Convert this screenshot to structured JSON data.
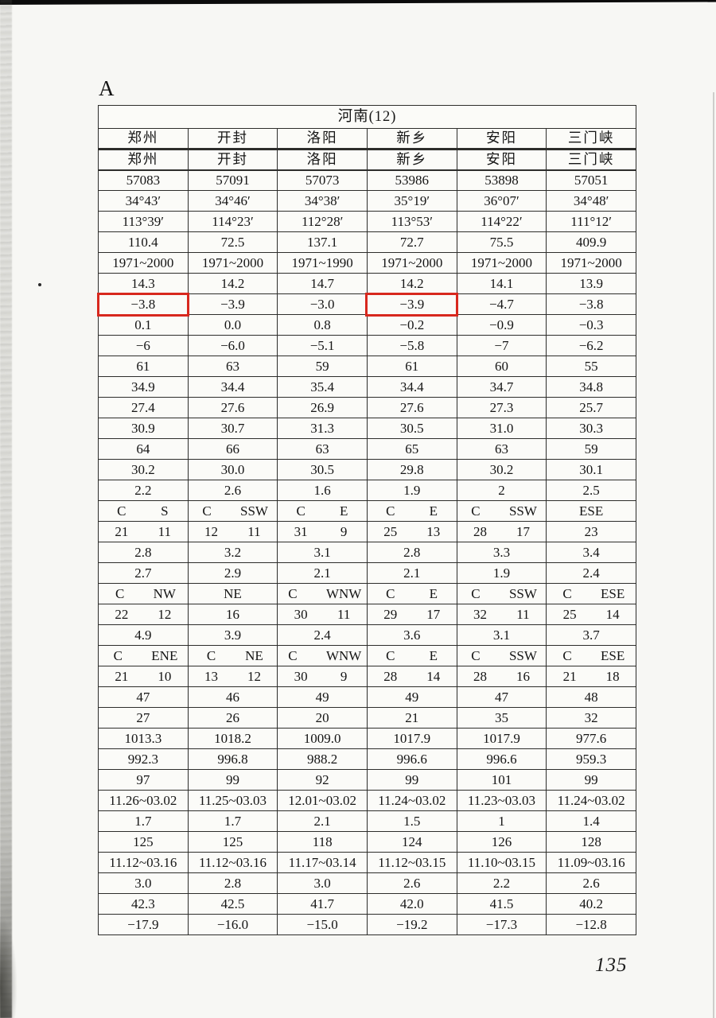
{
  "page": {
    "section_label": "A",
    "page_number": "135"
  },
  "table": {
    "title": "河南(12)",
    "header_rows": [
      [
        "郑州",
        "开封",
        "洛阳",
        "新乡",
        "安阳",
        "三门峡"
      ],
      [
        "郑州",
        "开封",
        "洛阳",
        "新乡",
        "安阳",
        "三门峡"
      ]
    ],
    "data_rows": [
      [
        "57083",
        "57091",
        "57073",
        "53986",
        "53898",
        "57051"
      ],
      [
        "34°43′",
        "34°46′",
        "34°38′",
        "35°19′",
        "36°07′",
        "34°48′"
      ],
      [
        "113°39′",
        "114°23′",
        "112°28′",
        "113°53′",
        "114°22′",
        "111°12′"
      ],
      [
        "110.4",
        "72.5",
        "137.1",
        "72.7",
        "75.5",
        "409.9"
      ],
      [
        "1971~2000",
        "1971~2000",
        "1971~1990",
        "1971~2000",
        "1971~2000",
        "1971~2000"
      ],
      [
        "14.3",
        "14.2",
        "14.7",
        "14.2",
        "14.1",
        "13.9"
      ],
      [
        "−3.8",
        "−3.9",
        "−3.0",
        "−3.9",
        "−4.7",
        "−3.8"
      ],
      [
        "0.1",
        "0.0",
        "0.8",
        "−0.2",
        "−0.9",
        "−0.3"
      ],
      [
        "−6",
        "−6.0",
        "−5.1",
        "−5.8",
        "−7",
        "−6.2"
      ],
      [
        "61",
        "63",
        "59",
        "61",
        "60",
        "55"
      ],
      [
        "34.9",
        "34.4",
        "35.4",
        "34.4",
        "34.7",
        "34.8"
      ],
      [
        "27.4",
        "27.6",
        "26.9",
        "27.6",
        "27.3",
        "25.7"
      ],
      [
        "30.9",
        "30.7",
        "31.3",
        "30.5",
        "31.0",
        "30.3"
      ],
      [
        "64",
        "66",
        "63",
        "65",
        "63",
        "59"
      ],
      [
        "30.2",
        "30.0",
        "30.5",
        "29.8",
        "30.2",
        "30.1"
      ],
      [
        "2.2",
        "2.6",
        "1.6",
        "1.9",
        "2",
        "2.5"
      ],
      [
        [
          "C",
          "S"
        ],
        [
          "C",
          "SSW"
        ],
        [
          "C",
          "E"
        ],
        [
          "C",
          "E"
        ],
        [
          "C",
          "SSW"
        ],
        "ESE"
      ],
      [
        [
          "21",
          "11"
        ],
        [
          "12",
          "11"
        ],
        [
          "31",
          "9"
        ],
        [
          "25",
          "13"
        ],
        [
          "28",
          "17"
        ],
        "23"
      ],
      [
        "2.8",
        "3.2",
        "3.1",
        "2.8",
        "3.3",
        "3.4"
      ],
      [
        "2.7",
        "2.9",
        "2.1",
        "2.1",
        "1.9",
        "2.4"
      ],
      [
        [
          "C",
          "NW"
        ],
        "NE",
        [
          "C",
          "WNW"
        ],
        [
          "C",
          "E"
        ],
        [
          "C",
          "SSW"
        ],
        [
          "C",
          "ESE"
        ]
      ],
      [
        [
          "22",
          "12"
        ],
        "16",
        [
          "30",
          "11"
        ],
        [
          "29",
          "17"
        ],
        [
          "32",
          "11"
        ],
        [
          "25",
          "14"
        ]
      ],
      [
        "4.9",
        "3.9",
        "2.4",
        "3.6",
        "3.1",
        "3.7"
      ],
      [
        [
          "C",
          "ENE"
        ],
        [
          "C",
          "NE"
        ],
        [
          "C",
          "WNW"
        ],
        [
          "C",
          "E"
        ],
        [
          "C",
          "SSW"
        ],
        [
          "C",
          "ESE"
        ]
      ],
      [
        [
          "21",
          "10"
        ],
        [
          "13",
          "12"
        ],
        [
          "30",
          "9"
        ],
        [
          "28",
          "14"
        ],
        [
          "28",
          "16"
        ],
        [
          "21",
          "18"
        ]
      ],
      [
        "47",
        "46",
        "49",
        "49",
        "47",
        "48"
      ],
      [
        "27",
        "26",
        "20",
        "21",
        "35",
        "32"
      ],
      [
        "1013.3",
        "1018.2",
        "1009.0",
        "1017.9",
        "1017.9",
        "977.6"
      ],
      [
        "992.3",
        "996.8",
        "988.2",
        "996.6",
        "996.6",
        "959.3"
      ],
      [
        "97",
        "99",
        "92",
        "99",
        "101",
        "99"
      ],
      [
        "11.26~03.02",
        "11.25~03.03",
        "12.01~03.02",
        "11.24~03.02",
        "11.23~03.03",
        "11.24~03.02"
      ],
      [
        "1.7",
        "1.7",
        "2.1",
        "1.5",
        "1",
        "1.4"
      ],
      [
        "125",
        "125",
        "118",
        "124",
        "126",
        "128"
      ],
      [
        "11.12~03.16",
        "11.12~03.16",
        "11.17~03.14",
        "11.12~03.15",
        "11.10~03.15",
        "11.09~03.16"
      ],
      [
        "3.0",
        "2.8",
        "3.0",
        "2.6",
        "2.2",
        "2.6"
      ],
      [
        "42.3",
        "42.5",
        "41.7",
        "42.0",
        "41.5",
        "40.2"
      ],
      [
        "−17.9",
        "−16.0",
        "−15.0",
        "−19.2",
        "−17.3",
        "−12.8"
      ]
    ],
    "highlight_color": "#d8281e",
    "highlighted_cells": [
      {
        "row": 6,
        "col": 0
      },
      {
        "row": 6,
        "col": 3
      }
    ]
  }
}
